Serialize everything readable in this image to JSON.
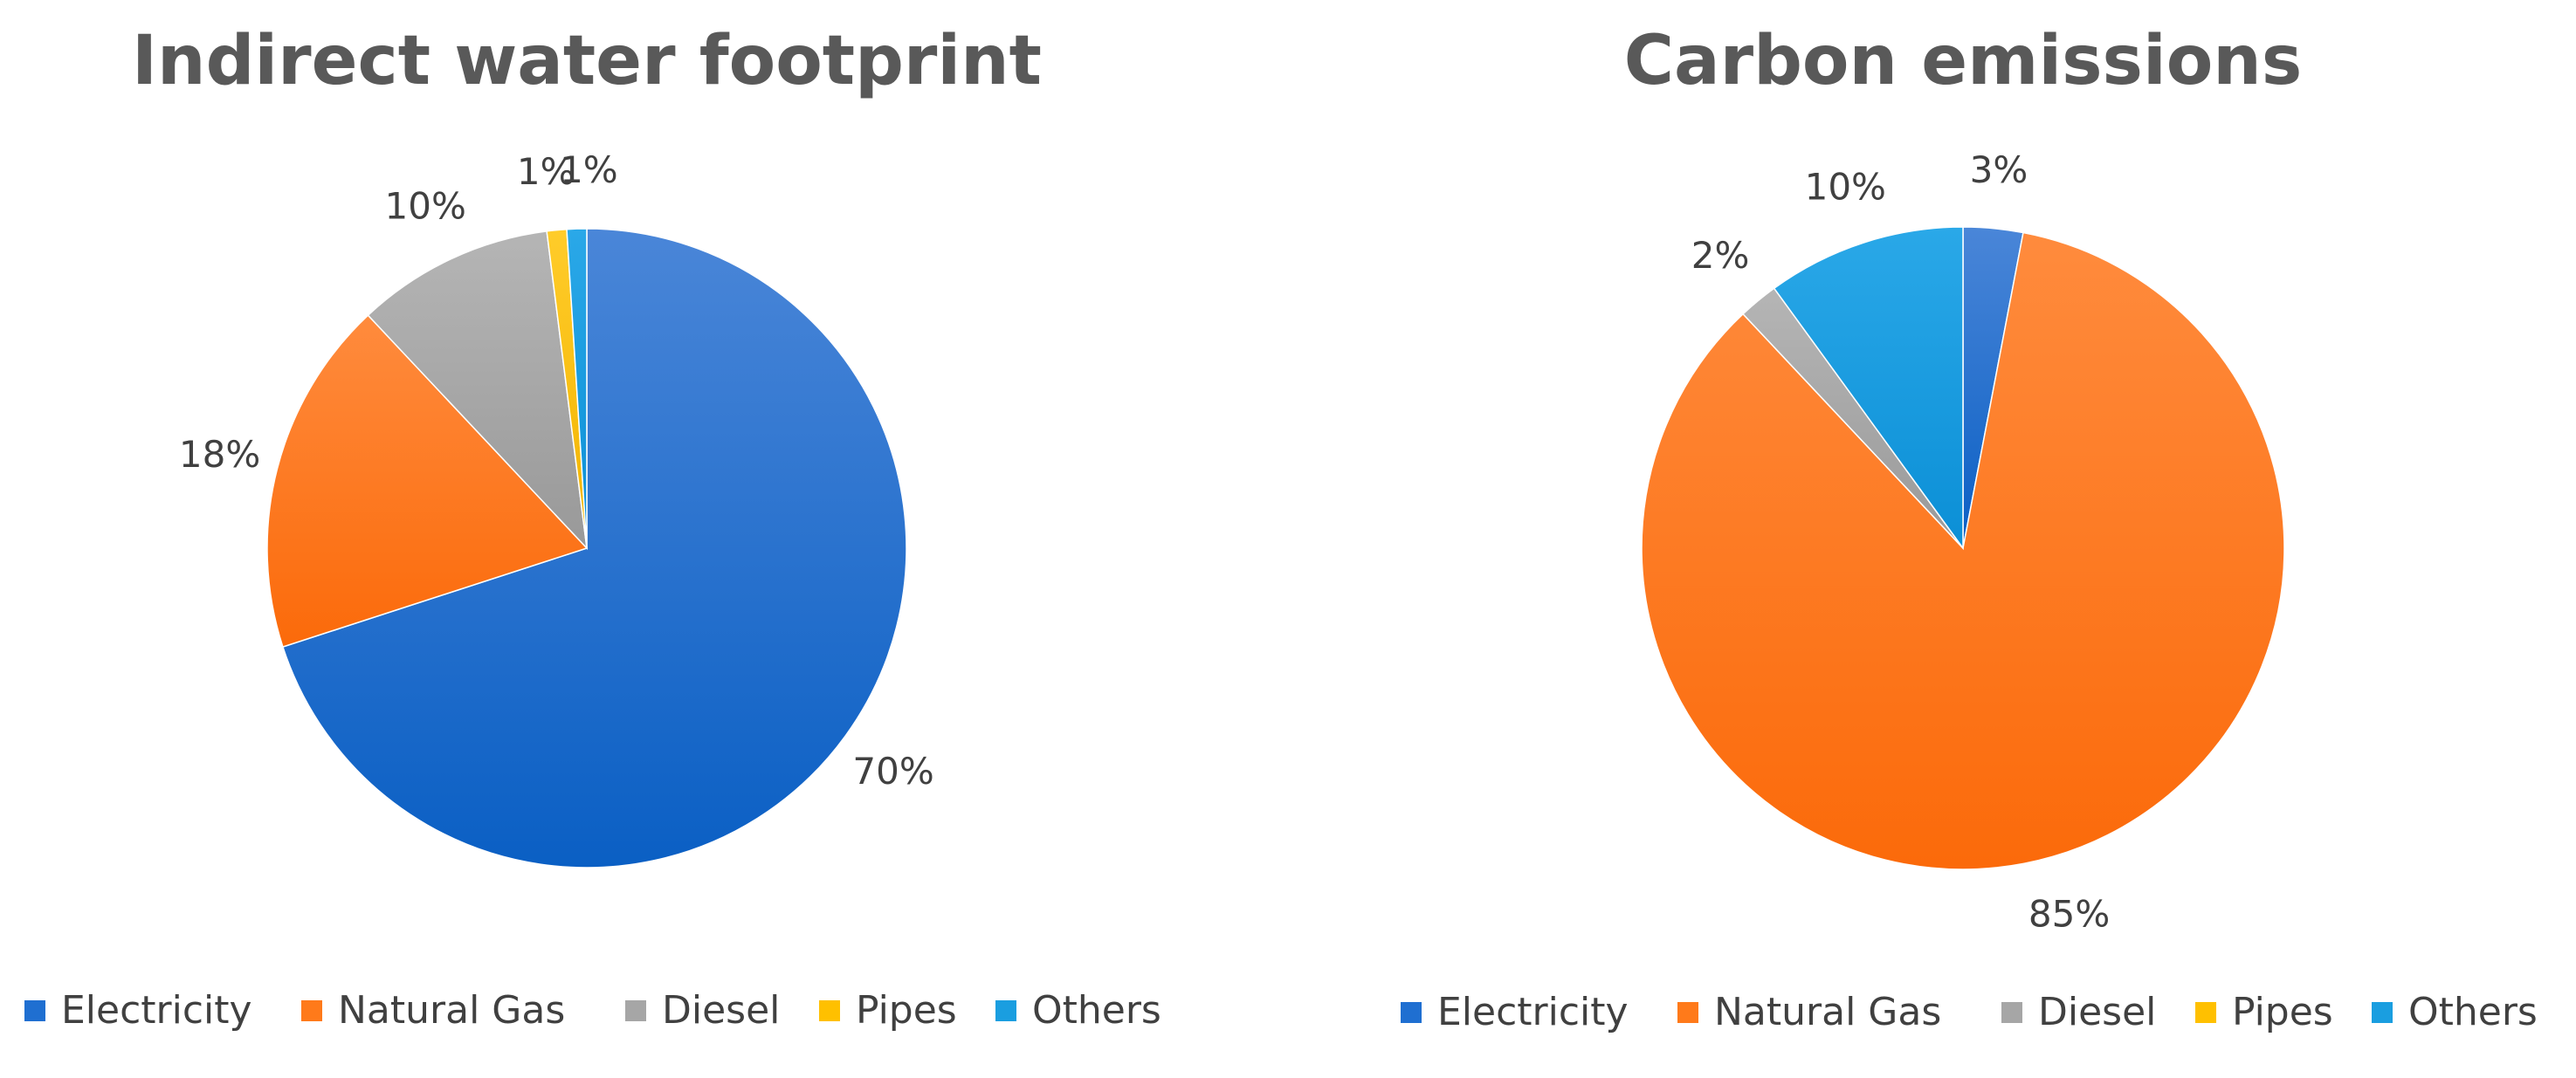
{
  "colors": {
    "electricity": "#1f6fd1",
    "natural_gas": "#ff7a1a",
    "diesel": "#a6a6a6",
    "pipes": "#ffc000",
    "others": "#1a9ee0",
    "text": "#404040",
    "title": "#595959"
  },
  "chart_data": [
    {
      "type": "pie",
      "title": "Indirect water footprint",
      "categories": [
        "Electricity",
        "Natural Gas",
        "Diesel",
        "Pipes",
        "Others"
      ],
      "values": [
        70,
        18,
        10,
        1,
        1
      ],
      "data_labels": [
        "70%",
        "18%",
        "10%",
        "1%",
        "1%"
      ],
      "colors": [
        "#1f6fd1",
        "#ff7a1a",
        "#a6a6a6",
        "#ffc000",
        "#1a9ee0"
      ],
      "legend": {
        "position": "bottom",
        "items": [
          "Electricity",
          "Natural Gas",
          "Diesel",
          "Pipes",
          "Others"
        ]
      }
    },
    {
      "type": "pie",
      "title": "Carbon emissions",
      "categories": [
        "Electricity",
        "Natural Gas",
        "Diesel",
        "Pipes",
        "Others"
      ],
      "values": [
        3,
        85,
        2,
        0,
        10
      ],
      "data_labels": [
        "3%",
        "85%",
        "2%",
        "",
        "10%"
      ],
      "colors": [
        "#1f6fd1",
        "#ff7a1a",
        "#a6a6a6",
        "#ffc000",
        "#1a9ee0"
      ],
      "legend": {
        "position": "bottom",
        "items": [
          "Electricity",
          "Natural Gas",
          "Diesel",
          "Pipes",
          "Others"
        ]
      }
    }
  ]
}
